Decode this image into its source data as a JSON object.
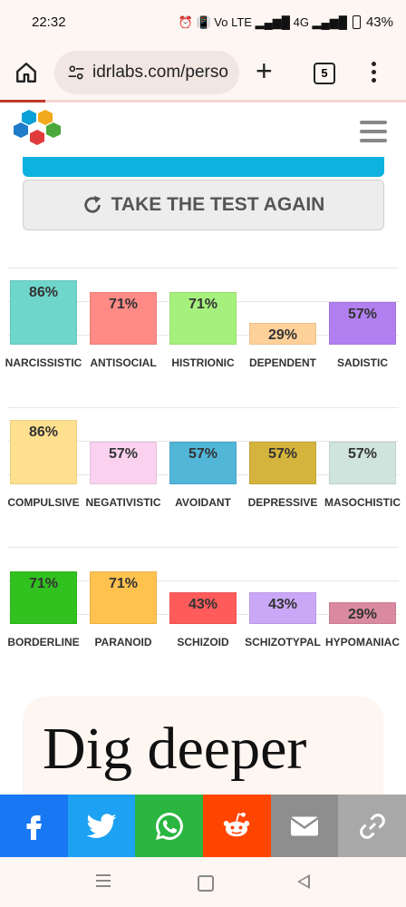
{
  "status": {
    "time": "22:32",
    "indicators": "⏰ 📳 Vo LTE ▂▄▆█ 4G ▂▄▆█",
    "battery": "43%"
  },
  "browser": {
    "url": "idrlabs.com/perso",
    "tab_count": "5"
  },
  "retake": {
    "label": "TAKE THE TEST AGAIN"
  },
  "chart_data": {
    "type": "bar",
    "groups": [
      {
        "categories": [
          "NARCISSISTIC",
          "ANTISOCIAL",
          "HISTRIONIC",
          "DEPENDENT",
          "SADISTIC"
        ],
        "values": [
          86,
          71,
          71,
          29,
          57
        ],
        "colors": [
          "#6fd6cc",
          "#ff8a86",
          "#a6f07d",
          "#ffd19a",
          "#b27ff0"
        ]
      },
      {
        "categories": [
          "COMPULSIVE",
          "NEGATIVISTIC",
          "AVOIDANT",
          "DEPRESSIVE",
          "MASOCHISTIC"
        ],
        "values": [
          86,
          57,
          57,
          57,
          57
        ],
        "colors": [
          "#ffe08f",
          "#fad2ef",
          "#51b6d8",
          "#d4b43c",
          "#cfe4dc"
        ]
      },
      {
        "categories": [
          "BORDERLINE",
          "PARANOID",
          "SCHIZOID",
          "SCHIZOTYPAL",
          "HYPOMANIAC"
        ],
        "values": [
          71,
          71,
          43,
          43,
          29
        ],
        "colors": [
          "#31c21f",
          "#ffc24f",
          "#ff5b5b",
          "#cba8f7",
          "#d98aa0"
        ]
      }
    ],
    "value_suffix": "%",
    "ylim": [
      0,
      100
    ],
    "grid": true
  },
  "dig": {
    "title": "Dig deeper"
  },
  "share": [
    {
      "name": "facebook-icon",
      "color": "#1877f2"
    },
    {
      "name": "twitter-icon",
      "color": "#1da1f2"
    },
    {
      "name": "whatsapp-icon",
      "color": "#2ab640"
    },
    {
      "name": "reddit-icon",
      "color": "#ff4500"
    },
    {
      "name": "email-icon",
      "color": "#8e8e8e"
    },
    {
      "name": "link-icon",
      "color": "#a8a8a8"
    }
  ]
}
